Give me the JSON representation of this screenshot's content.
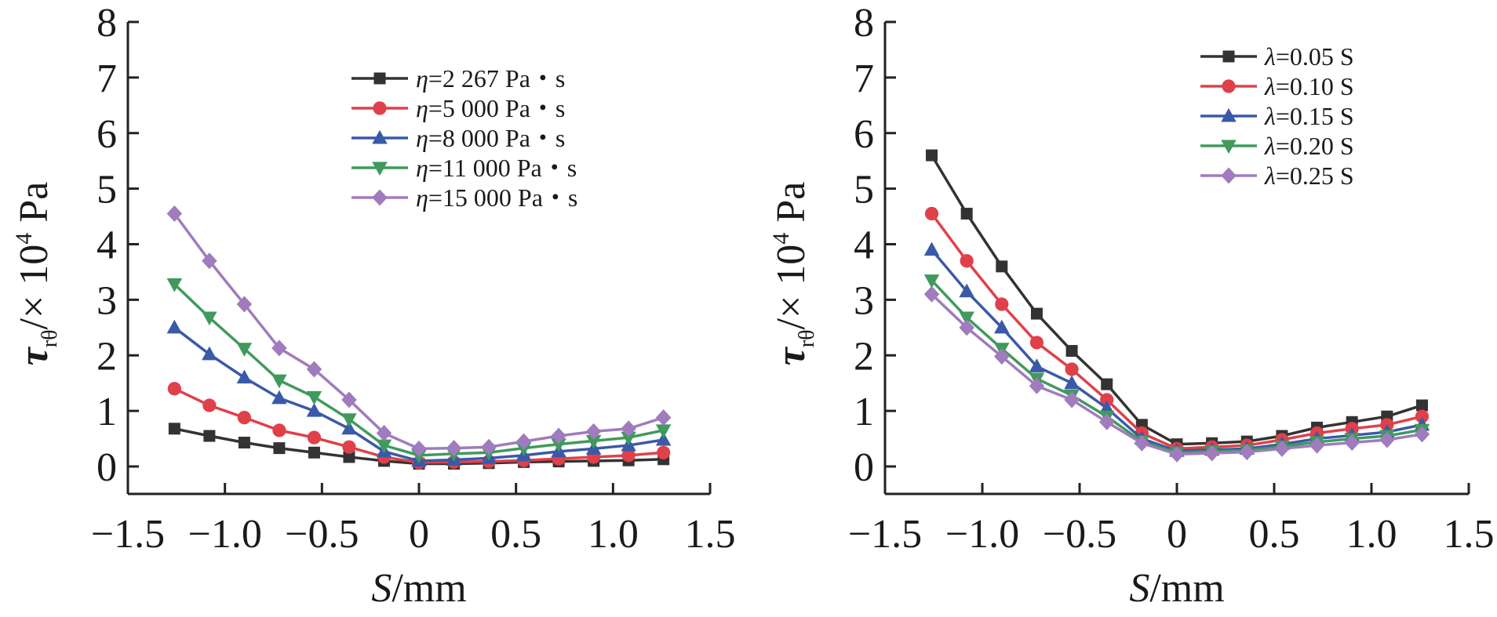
{
  "chart_data": [
    {
      "type": "line",
      "xlabel": {
        "italic": "S",
        "rest": "/mm"
      },
      "ylabel": {
        "symbol": "τ",
        "sub": "rθ",
        "rest": "/× 10",
        "sup": "4",
        "unit": " Pa"
      },
      "xlim": [
        -1.5,
        1.5
      ],
      "ylim": [
        0,
        8
      ],
      "x_ticks": [
        "−1.5",
        "−1.0",
        "−0.5",
        "0",
        "0.5",
        "1.0",
        "1.5"
      ],
      "x_tick_values": [
        -1.5,
        -1.0,
        -0.5,
        0,
        0.5,
        1.0,
        1.5
      ],
      "y_ticks": [
        "0",
        "1",
        "2",
        "3",
        "4",
        "5",
        "6",
        "7",
        "8"
      ],
      "y_tick_values": [
        0,
        1,
        2,
        3,
        4,
        5,
        6,
        7,
        8
      ],
      "grid": false,
      "legend_position": "top-right",
      "x": [
        -1.26,
        -1.08,
        -0.9,
        -0.72,
        -0.54,
        -0.36,
        -0.18,
        0,
        0.18,
        0.36,
        0.54,
        0.72,
        0.9,
        1.08,
        1.26
      ],
      "series": [
        {
          "name": "2 267 Pa・s",
          "symbol": "η=",
          "color": "#333333",
          "marker": "square",
          "values": [
            0.68,
            0.55,
            0.43,
            0.33,
            0.25,
            0.17,
            0.1,
            0.05,
            0.05,
            0.06,
            0.08,
            0.09,
            0.1,
            0.11,
            0.13
          ]
        },
        {
          "name": "5 000 Pa・s",
          "symbol": "η=",
          "color": "#e0404a",
          "marker": "circle",
          "values": [
            1.4,
            1.1,
            0.88,
            0.65,
            0.52,
            0.35,
            0.17,
            0.07,
            0.08,
            0.09,
            0.11,
            0.14,
            0.17,
            0.2,
            0.25
          ]
        },
        {
          "name": "8 000 Pa・s",
          "symbol": "η=",
          "color": "#3a5aa8",
          "marker": "triangle-up",
          "values": [
            2.5,
            2.02,
            1.6,
            1.23,
            1.0,
            0.68,
            0.27,
            0.1,
            0.12,
            0.15,
            0.2,
            0.27,
            0.32,
            0.38,
            0.48
          ]
        },
        {
          "name": "11 000 Pa・s",
          "symbol": "η=",
          "color": "#3f9a5c",
          "marker": "triangle-down",
          "values": [
            3.28,
            2.68,
            2.12,
            1.55,
            1.25,
            0.85,
            0.38,
            0.2,
            0.23,
            0.25,
            0.33,
            0.4,
            0.46,
            0.52,
            0.65
          ]
        },
        {
          "name": "15 000 Pa・s",
          "symbol": "η=",
          "color": "#a07bbd",
          "marker": "diamond",
          "values": [
            4.55,
            3.7,
            2.92,
            2.13,
            1.75,
            1.2,
            0.6,
            0.32,
            0.33,
            0.35,
            0.45,
            0.55,
            0.63,
            0.68,
            0.88
          ]
        }
      ]
    },
    {
      "type": "line",
      "xlabel": {
        "italic": "S",
        "rest": "/mm"
      },
      "ylabel": {
        "symbol": "τ",
        "sub": "rθ",
        "rest": "/× 10",
        "sup": "4",
        "unit": " Pa"
      },
      "xlim": [
        -1.5,
        1.5
      ],
      "ylim": [
        0,
        8
      ],
      "x_ticks": [
        "−1.5",
        "−1.0",
        "−0.5",
        "0",
        "0.5",
        "1.0",
        "1.5"
      ],
      "x_tick_values": [
        -1.5,
        -1.0,
        -0.5,
        0,
        0.5,
        1.0,
        1.5
      ],
      "y_ticks": [
        "0",
        "1",
        "2",
        "3",
        "4",
        "5",
        "6",
        "7",
        "8"
      ],
      "y_tick_values": [
        0,
        1,
        2,
        3,
        4,
        5,
        6,
        7,
        8
      ],
      "grid": false,
      "legend_position": "top-right",
      "x": [
        -1.26,
        -1.08,
        -0.9,
        -0.72,
        -0.54,
        -0.36,
        -0.18,
        0,
        0.18,
        0.36,
        0.54,
        0.72,
        0.9,
        1.08,
        1.26
      ],
      "series": [
        {
          "name": "0.05 S",
          "symbol": "λ=",
          "color": "#333333",
          "marker": "square",
          "values": [
            5.6,
            4.55,
            3.6,
            2.75,
            2.08,
            1.48,
            0.75,
            0.4,
            0.42,
            0.45,
            0.55,
            0.7,
            0.8,
            0.9,
            1.1
          ]
        },
        {
          "name": "0.10 S",
          "symbol": "λ=",
          "color": "#e0404a",
          "marker": "circle",
          "values": [
            4.55,
            3.7,
            2.92,
            2.23,
            1.75,
            1.2,
            0.6,
            0.32,
            0.35,
            0.38,
            0.48,
            0.6,
            0.68,
            0.75,
            0.9
          ]
        },
        {
          "name": "0.15 S",
          "symbol": "λ=",
          "color": "#3a5aa8",
          "marker": "triangle-up",
          "values": [
            3.9,
            3.15,
            2.5,
            1.8,
            1.5,
            1.05,
            0.5,
            0.28,
            0.3,
            0.32,
            0.4,
            0.5,
            0.56,
            0.62,
            0.75
          ]
        },
        {
          "name": "0.20 S",
          "symbol": "λ=",
          "color": "#3f9a5c",
          "marker": "triangle-down",
          "values": [
            3.35,
            2.68,
            2.12,
            1.58,
            1.28,
            0.9,
            0.45,
            0.25,
            0.27,
            0.29,
            0.36,
            0.44,
            0.5,
            0.55,
            0.66
          ]
        },
        {
          "name": "0.25 S",
          "symbol": "λ=",
          "color": "#a07bbd",
          "marker": "diamond",
          "values": [
            3.1,
            2.5,
            1.98,
            1.45,
            1.2,
            0.8,
            0.42,
            0.22,
            0.24,
            0.26,
            0.32,
            0.38,
            0.43,
            0.48,
            0.58
          ]
        }
      ]
    }
  ]
}
